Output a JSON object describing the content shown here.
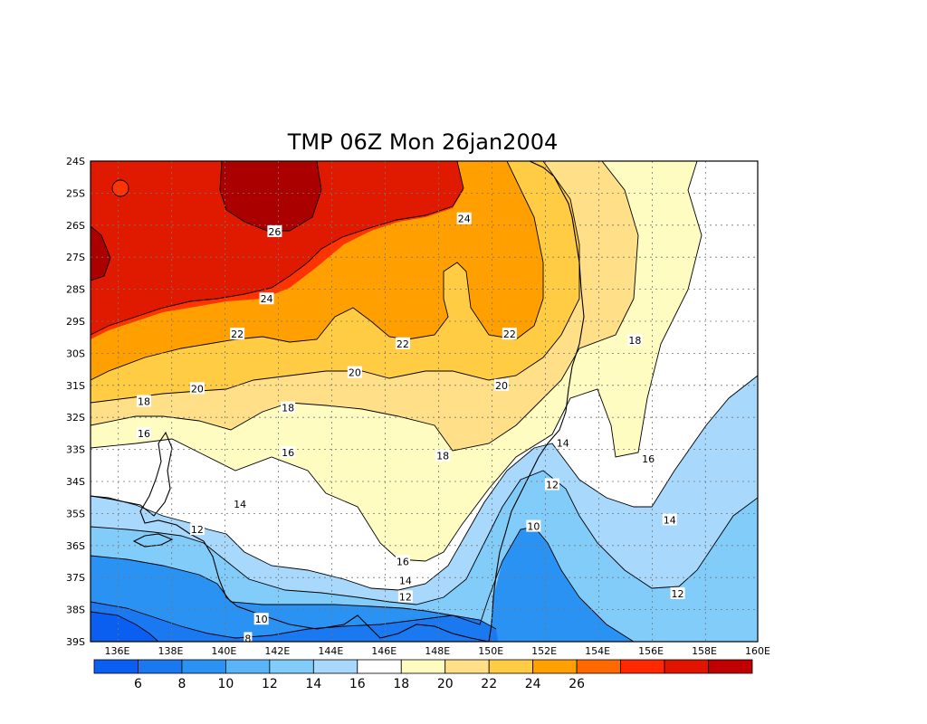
{
  "title": "TMP 06Z Mon 26jan2004",
  "map": {
    "lon_range": [
      135,
      160
    ],
    "lat_range": [
      -39,
      -24
    ],
    "lon_ticks": [
      "136E",
      "138E",
      "140E",
      "142E",
      "144E",
      "146E",
      "148E",
      "150E",
      "152E",
      "154E",
      "156E",
      "158E",
      "160E"
    ],
    "lat_ticks": [
      "24S",
      "25S",
      "26S",
      "27S",
      "28S",
      "29S",
      "30S",
      "31S",
      "32S",
      "33S",
      "34S",
      "35S",
      "36S",
      "37S",
      "38S",
      "39S"
    ],
    "contour_labels": [
      {
        "text": "26",
        "lon": 141.9,
        "lat": -26.2
      },
      {
        "text": "24",
        "lon": 149.0,
        "lat": -25.8
      },
      {
        "text": "24",
        "lon": 141.6,
        "lat": -28.3
      },
      {
        "text": "22",
        "lon": 140.5,
        "lat": -29.4
      },
      {
        "text": "22",
        "lon": 146.7,
        "lat": -29.7
      },
      {
        "text": "22",
        "lon": 150.7,
        "lat": -29.4
      },
      {
        "text": "20",
        "lon": 139.0,
        "lat": -31.1
      },
      {
        "text": "20",
        "lon": 144.9,
        "lat": -30.6
      },
      {
        "text": "20",
        "lon": 150.4,
        "lat": -31.0
      },
      {
        "text": "18",
        "lon": 137.0,
        "lat": -31.5
      },
      {
        "text": "18",
        "lon": 142.4,
        "lat": -31.7
      },
      {
        "text": "18",
        "lon": 148.2,
        "lat": -33.2
      },
      {
        "text": "18",
        "lon": 155.4,
        "lat": -29.6
      },
      {
        "text": "16",
        "lon": 137.0,
        "lat": -32.5
      },
      {
        "text": "16",
        "lon": 142.4,
        "lat": -33.1
      },
      {
        "text": "16",
        "lon": 146.7,
        "lat": -36.5
      },
      {
        "text": "16",
        "lon": 155.9,
        "lat": -33.3
      },
      {
        "text": "14",
        "lon": 140.6,
        "lat": -34.7
      },
      {
        "text": "14",
        "lon": 146.8,
        "lat": -37.1
      },
      {
        "text": "14",
        "lon": 152.7,
        "lat": -32.8
      },
      {
        "text": "14",
        "lon": 156.7,
        "lat": -35.2
      },
      {
        "text": "12",
        "lon": 139.0,
        "lat": -35.5
      },
      {
        "text": "12",
        "lon": 146.8,
        "lat": -37.6
      },
      {
        "text": "12",
        "lon": 152.3,
        "lat": -34.1
      },
      {
        "text": "12",
        "lon": 157.0,
        "lat": -37.5
      },
      {
        "text": "10",
        "lon": 141.4,
        "lat": -38.3
      },
      {
        "text": "10",
        "lon": 151.6,
        "lat": -35.4
      },
      {
        "text": "8",
        "lon": 140.9,
        "lat": -38.9
      }
    ]
  },
  "colorbar": {
    "colors": [
      "#0a5ff0",
      "#1a78f0",
      "#2a92f3",
      "#5ab4f8",
      "#82ccfa",
      "#a8d8fc",
      "#ffffff",
      "#fffcc2",
      "#ffe089",
      "#ffcc44",
      "#ffa000",
      "#ff6a00",
      "#ff2800",
      "#e11400",
      "#c00000"
    ],
    "labels": [
      "6",
      "8",
      "10",
      "12",
      "14",
      "16",
      "18",
      "20",
      "22",
      "24",
      "26"
    ]
  },
  "band_colors": {
    "lt6": "#0a5ff0",
    "6to8": "#1a78f0",
    "8to10": "#2a92f3",
    "10to12": "#82ccfa",
    "12to14": "#a8d8fc",
    "14to16": "#ffffff",
    "16to18": "#fffcc2",
    "18to20": "#ffe089",
    "20to22": "#ffcc44",
    "22to24": "#ffa000",
    "24to26": "#ff3300",
    "26to28": "#dd1100",
    "gt26": "#aa0000"
  }
}
